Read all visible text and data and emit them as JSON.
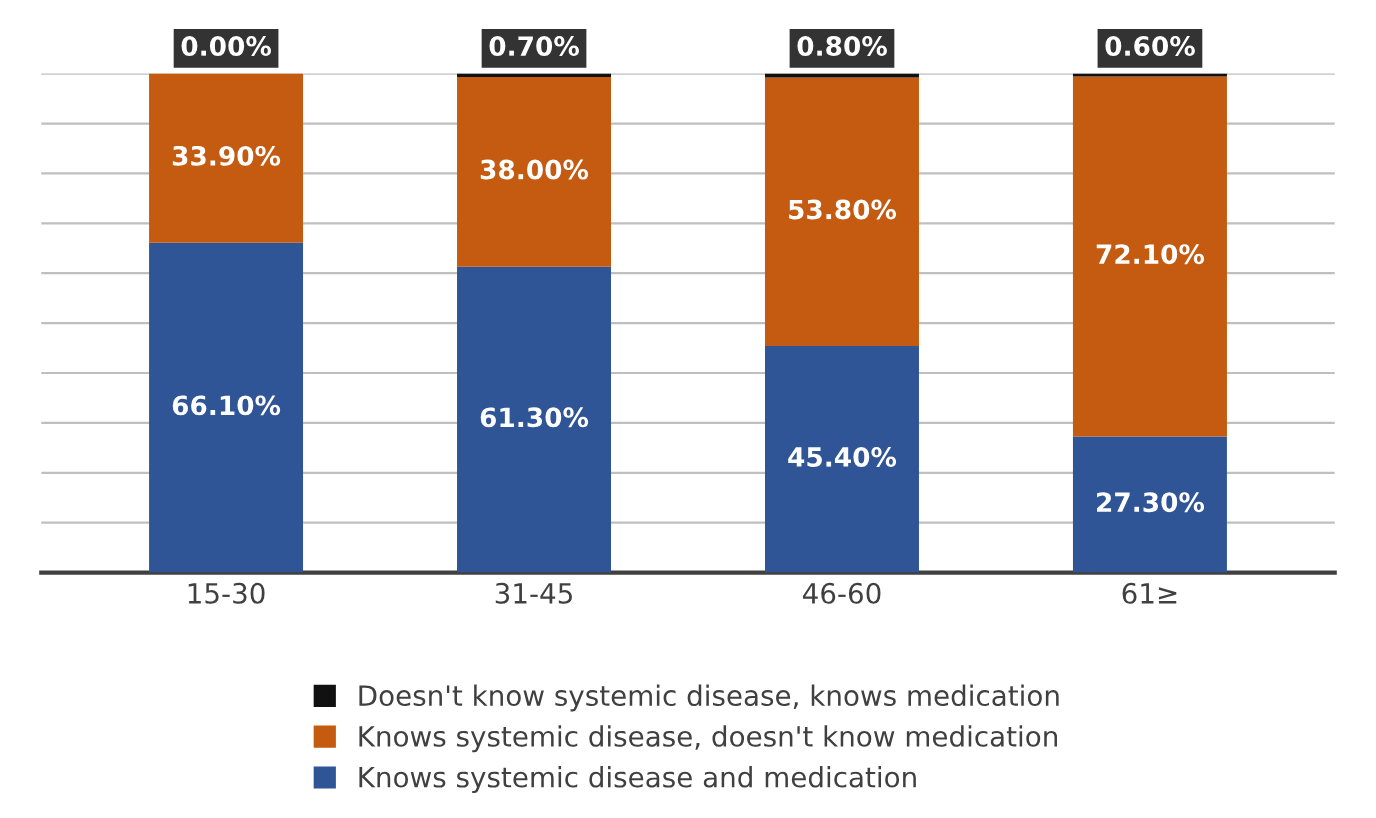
{
  "chart_data": {
    "type": "bar",
    "stacked": true,
    "categories": [
      "15-30",
      "31-45",
      "46-60",
      "61≥"
    ],
    "series": [
      {
        "name": "Knows systemic disease and medication",
        "color": "#2f5597",
        "values": [
          66.1,
          61.3,
          45.4,
          27.3
        ],
        "value_labels": [
          "66.10%",
          "61.30%",
          "45.40%",
          "27.30%"
        ]
      },
      {
        "name": "Knows systemic disease, doesn't know medication",
        "color": "#c55a11",
        "values": [
          33.9,
          38.0,
          53.8,
          72.1
        ],
        "value_labels": [
          "33.90%",
          "38.00%",
          "53.80%",
          "72.10%"
        ]
      },
      {
        "name": "Doesn't know systemic disease, knows medication",
        "color": "#111111",
        "values": [
          0.0,
          0.7,
          0.8,
          0.6
        ],
        "value_labels": [
          "0.00%",
          "0.70%",
          "0.80%",
          "0.60%"
        ]
      }
    ],
    "ylim": [
      0,
      100
    ],
    "yticks": [
      {
        "value": 0,
        "label": null
      },
      {
        "value": 10,
        "label": null
      },
      {
        "value": 20,
        "label": null
      },
      {
        "value": 30,
        "label": null
      },
      {
        "value": 40,
        "label": null
      },
      {
        "value": 50,
        "label": null
      },
      {
        "value": 60,
        "label": null
      },
      {
        "value": 70,
        "label": null
      },
      {
        "value": 80,
        "label": null
      },
      {
        "value": 90,
        "label": null
      },
      {
        "value": 100,
        "label": null
      }
    ],
    "tick_labels": "x",
    "grid": "y",
    "legend": "bottom"
  }
}
